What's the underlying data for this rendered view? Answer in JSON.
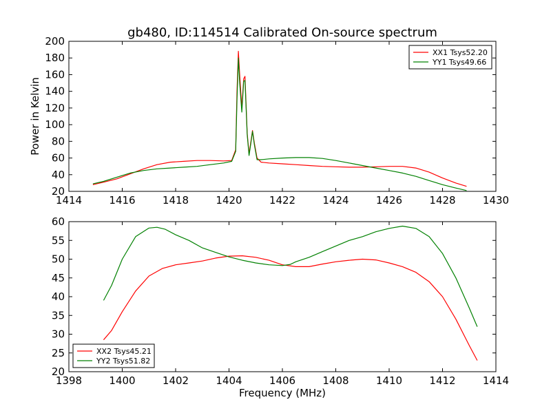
{
  "chart_data": [
    {
      "type": "line",
      "title": "gb480, ID:114514 Calibrated On-source spectrum",
      "xlabel": "",
      "ylabel": "Power in Kelvin",
      "xlim": [
        1414,
        1430
      ],
      "ylim": [
        20,
        200
      ],
      "xticks": [
        1414,
        1416,
        1418,
        1420,
        1422,
        1424,
        1426,
        1428,
        1430
      ],
      "yticks": [
        20,
        40,
        60,
        80,
        100,
        120,
        140,
        160,
        180,
        200
      ],
      "legend_placement": "top-right",
      "grid": false,
      "series": [
        {
          "name": "XX1 Tsys52.20",
          "color": "#ff0000",
          "points": [
            [
              1414.9,
              28
            ],
            [
              1415.3,
              31
            ],
            [
              1415.8,
              35
            ],
            [
              1416.3,
              41
            ],
            [
              1416.8,
              47
            ],
            [
              1417.3,
              52
            ],
            [
              1417.8,
              55
            ],
            [
              1418.3,
              56
            ],
            [
              1418.8,
              57
            ],
            [
              1419.3,
              57
            ],
            [
              1419.8,
              56.5
            ],
            [
              1420.1,
              57
            ],
            [
              1420.25,
              70
            ],
            [
              1420.3,
              140
            ],
            [
              1420.35,
              188
            ],
            [
              1420.4,
              160
            ],
            [
              1420.48,
              120
            ],
            [
              1420.55,
              155
            ],
            [
              1420.6,
              158
            ],
            [
              1420.68,
              90
            ],
            [
              1420.75,
              65
            ],
            [
              1420.82,
              80
            ],
            [
              1420.88,
              93
            ],
            [
              1420.95,
              78
            ],
            [
              1421.05,
              60
            ],
            [
              1421.2,
              55
            ],
            [
              1421.5,
              54
            ],
            [
              1422,
              53
            ],
            [
              1422.5,
              52
            ],
            [
              1423,
              51
            ],
            [
              1423.5,
              50
            ],
            [
              1424,
              49.5
            ],
            [
              1424.5,
              49
            ],
            [
              1425,
              49
            ],
            [
              1425.5,
              49.5
            ],
            [
              1426,
              50
            ],
            [
              1426.5,
              50
            ],
            [
              1427,
              48
            ],
            [
              1427.5,
              43
            ],
            [
              1428,
              36
            ],
            [
              1428.5,
              30
            ],
            [
              1428.9,
              26
            ]
          ]
        },
        {
          "name": "YY1 Tsys49.66",
          "color": "#008000",
          "points": [
            [
              1414.9,
              29
            ],
            [
              1415.3,
              32
            ],
            [
              1415.8,
              37
            ],
            [
              1416.3,
              42
            ],
            [
              1416.8,
              45
            ],
            [
              1417.3,
              47
            ],
            [
              1417.8,
              48
            ],
            [
              1418.3,
              49
            ],
            [
              1418.8,
              50
            ],
            [
              1419.3,
              52
            ],
            [
              1419.8,
              54
            ],
            [
              1420.1,
              56
            ],
            [
              1420.25,
              68
            ],
            [
              1420.3,
              130
            ],
            [
              1420.35,
              180
            ],
            [
              1420.4,
              150
            ],
            [
              1420.48,
              115
            ],
            [
              1420.55,
              152
            ],
            [
              1420.6,
              153
            ],
            [
              1420.68,
              88
            ],
            [
              1420.75,
              63
            ],
            [
              1420.82,
              78
            ],
            [
              1420.88,
              92
            ],
            [
              1420.95,
              76
            ],
            [
              1421.05,
              58
            ],
            [
              1421.2,
              58
            ],
            [
              1421.5,
              59
            ],
            [
              1422,
              60
            ],
            [
              1422.5,
              60.5
            ],
            [
              1423,
              60.5
            ],
            [
              1423.5,
              59.5
            ],
            [
              1424,
              57
            ],
            [
              1424.5,
              54
            ],
            [
              1425,
              51
            ],
            [
              1425.5,
              48
            ],
            [
              1426,
              45
            ],
            [
              1426.5,
              42
            ],
            [
              1427,
              38
            ],
            [
              1427.5,
              33
            ],
            [
              1428,
              28
            ],
            [
              1428.5,
              24
            ],
            [
              1428.9,
              21
            ]
          ]
        }
      ]
    },
    {
      "type": "line",
      "title": "",
      "xlabel": "Frequency (MHz)",
      "ylabel": "",
      "xlim": [
        1398,
        1414
      ],
      "ylim": [
        20,
        60
      ],
      "xticks": [
        1398,
        1400,
        1402,
        1404,
        1406,
        1408,
        1410,
        1412,
        1414
      ],
      "yticks": [
        20,
        25,
        30,
        35,
        40,
        45,
        50,
        55,
        60
      ],
      "legend_placement": "bottom-left",
      "grid": false,
      "series": [
        {
          "name": "XX2 Tsys45.21",
          "color": "#ff0000",
          "points": [
            [
              1399.3,
              28.5
            ],
            [
              1399.6,
              31
            ],
            [
              1400,
              36
            ],
            [
              1400.5,
              41.5
            ],
            [
              1401,
              45.5
            ],
            [
              1401.5,
              47.5
            ],
            [
              1402,
              48.5
            ],
            [
              1402.5,
              49
            ],
            [
              1403,
              49.5
            ],
            [
              1403.5,
              50.3
            ],
            [
              1404,
              50.8
            ],
            [
              1404.5,
              50.9
            ],
            [
              1405,
              50.5
            ],
            [
              1405.5,
              49.7
            ],
            [
              1406,
              48.5
            ],
            [
              1406.5,
              48
            ],
            [
              1407,
              48
            ],
            [
              1407.5,
              48.7
            ],
            [
              1408,
              49.3
            ],
            [
              1408.5,
              49.7
            ],
            [
              1409,
              50
            ],
            [
              1409.5,
              49.8
            ],
            [
              1410,
              49
            ],
            [
              1410.5,
              48
            ],
            [
              1411,
              46.5
            ],
            [
              1411.5,
              44
            ],
            [
              1412,
              40
            ],
            [
              1412.5,
              34
            ],
            [
              1413,
              27
            ],
            [
              1413.3,
              23
            ]
          ]
        },
        {
          "name": "YY2 Tsys51.82",
          "color": "#008000",
          "points": [
            [
              1399.3,
              39
            ],
            [
              1399.6,
              43
            ],
            [
              1400,
              50
            ],
            [
              1400.5,
              56
            ],
            [
              1401,
              58.3
            ],
            [
              1401.3,
              58.5
            ],
            [
              1401.6,
              58
            ],
            [
              1402,
              56.5
            ],
            [
              1402.5,
              55
            ],
            [
              1403,
              53
            ],
            [
              1403.5,
              51.8
            ],
            [
              1404,
              50.6
            ],
            [
              1404.5,
              49.7
            ],
            [
              1405,
              49
            ],
            [
              1405.5,
              48.5
            ],
            [
              1406,
              48.3
            ],
            [
              1406.3,
              48.6
            ],
            [
              1406.5,
              49.3
            ],
            [
              1407,
              50.5
            ],
            [
              1407.5,
              52
            ],
            [
              1408,
              53.5
            ],
            [
              1408.5,
              55
            ],
            [
              1409,
              56
            ],
            [
              1409.5,
              57.3
            ],
            [
              1410,
              58.2
            ],
            [
              1410.5,
              58.8
            ],
            [
              1411,
              58.2
            ],
            [
              1411.5,
              56
            ],
            [
              1412,
              51.5
            ],
            [
              1412.5,
              45
            ],
            [
              1413,
              37
            ],
            [
              1413.3,
              32
            ]
          ]
        }
      ]
    }
  ]
}
